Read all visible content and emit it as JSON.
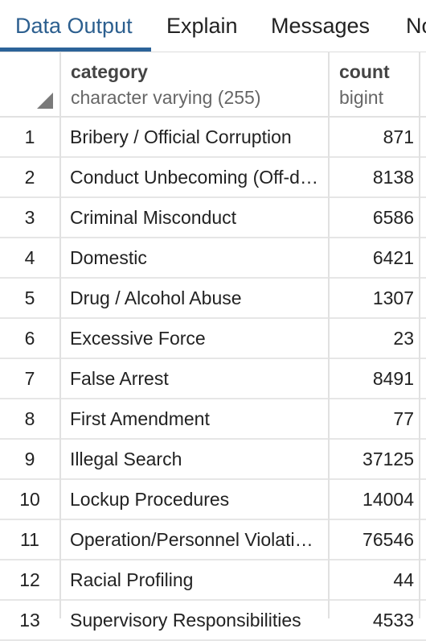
{
  "tabs": [
    {
      "label": "Data Output",
      "active": true
    },
    {
      "label": "Explain",
      "active": false
    },
    {
      "label": "Messages",
      "active": false
    },
    {
      "label": "Notifications",
      "active": false
    }
  ],
  "columns": [
    {
      "name": "category",
      "type": "character varying (255)"
    },
    {
      "name": "count",
      "type": "bigint"
    }
  ],
  "rows": [
    {
      "num": "1",
      "category": "Bribery / Official Corruption",
      "count": "871"
    },
    {
      "num": "2",
      "category": "Conduct Unbecoming (Off-duty)",
      "count": "8138"
    },
    {
      "num": "3",
      "category": "Criminal Misconduct",
      "count": "6586"
    },
    {
      "num": "4",
      "category": "Domestic",
      "count": "6421"
    },
    {
      "num": "5",
      "category": "Drug / Alcohol Abuse",
      "count": "1307"
    },
    {
      "num": "6",
      "category": "Excessive Force",
      "count": "23"
    },
    {
      "num": "7",
      "category": "False Arrest",
      "count": "8491"
    },
    {
      "num": "8",
      "category": "First Amendment",
      "count": "77"
    },
    {
      "num": "9",
      "category": "Illegal Search",
      "count": "37125"
    },
    {
      "num": "10",
      "category": "Lockup Procedures",
      "count": "14004"
    },
    {
      "num": "11",
      "category": "Operation/Personnel Violations",
      "count": "76546"
    },
    {
      "num": "12",
      "category": "Racial Profiling",
      "count": "44"
    },
    {
      "num": "13",
      "category": "Supervisory Responsibilities",
      "count": "4533"
    }
  ]
}
